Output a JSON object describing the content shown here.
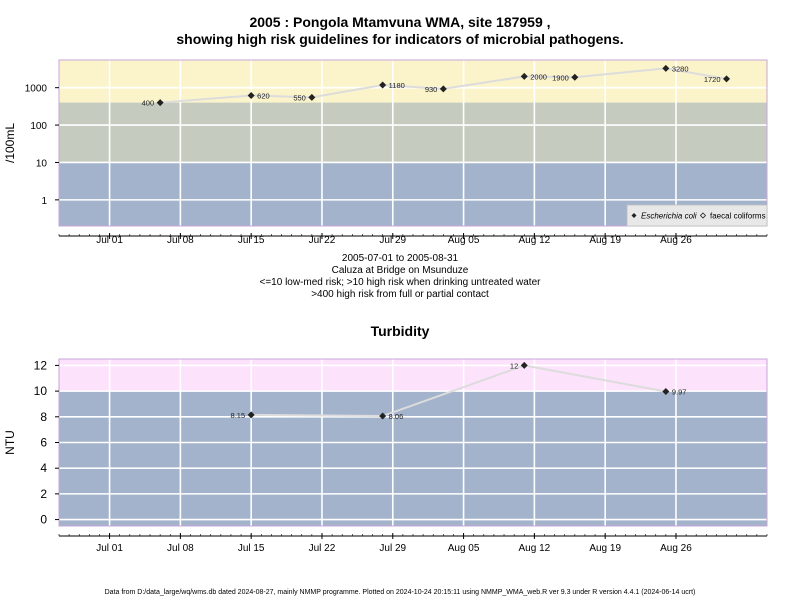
{
  "header": {
    "title_line1": "2005 : Pongola Mtamvuna WMA, site 187959 ,",
    "title_line2": "showing high risk guidelines for indicators of microbial pathogens.",
    "date_range": "2005-07-01 to 2005-08-31",
    "site_name": "Caluza at Bridge on Msunduze",
    "guideline_1": "<=10 low-med risk; >10 high risk when drinking untreated water",
    "guideline_2": ">400 high risk from full or partial contact",
    "footer": "Data from D:/data_large/wq/wms.db dated 2024-08-27, mainly NMMP programme. Plotted on 2024-10-24 20:15:11 using NMMP_WMA_web.R ver 9.3 under R version 4.4.1 (2024-06-14 ucrt)"
  },
  "colors": {
    "zone_low": "#a3b3cb",
    "zone_mid": "#c5ccbf",
    "zone_high": "#fbf4cb",
    "zone_turb_high": "#fde2fb",
    "line": "#dcdcdc",
    "point": "#222222",
    "grid": "#ffffff",
    "frame": "#c8a6d8"
  },
  "chart_data": [
    {
      "type": "line",
      "title": "",
      "ylabel": "/100mL",
      "xlabel": "",
      "y_scale": "log",
      "ylim": [
        0.2,
        5500
      ],
      "y_ticks": [
        {
          "v": 1,
          "label": "1"
        },
        {
          "v": 10,
          "label": "10"
        },
        {
          "v": 100,
          "label": "100"
        },
        {
          "v": 1000,
          "label": "1000"
        }
      ],
      "xlim": [
        "2005-06-26",
        "2005-09-04"
      ],
      "x_ticks": [
        "Jul 01",
        "Jul 08",
        "Jul 15",
        "Jul 22",
        "Jul 29",
        "Aug 05",
        "Aug 12",
        "Aug 19",
        "Aug 26"
      ],
      "x_tick_dates": [
        "2005-07-01",
        "2005-07-08",
        "2005-07-15",
        "2005-07-22",
        "2005-07-29",
        "2005-08-05",
        "2005-08-12",
        "2005-08-19",
        "2005-08-26"
      ],
      "zones": [
        {
          "from": 0.2,
          "to": 10,
          "color": "#a3b3cb"
        },
        {
          "from": 10,
          "to": 400,
          "color": "#c5ccbf"
        },
        {
          "from": 400,
          "to": 5500,
          "color": "#fbf4cb"
        }
      ],
      "series": [
        {
          "name": "Escherichia coli",
          "marker": "filled-diamond",
          "points": [
            {
              "x": "2005-07-06",
              "y": 400,
              "label": "400"
            },
            {
              "x": "2005-07-15",
              "y": 620,
              "label": "620"
            },
            {
              "x": "2005-07-21",
              "y": 550,
              "label": "550"
            },
            {
              "x": "2005-07-28",
              "y": 1180,
              "label": "1180"
            },
            {
              "x": "2005-08-03",
              "y": 930,
              "label": "930"
            },
            {
              "x": "2005-08-11",
              "y": 2000,
              "label": "2000"
            },
            {
              "x": "2005-08-16",
              "y": 1900,
              "label": "1900"
            },
            {
              "x": "2005-08-25",
              "y": 3280,
              "label": "3280"
            },
            {
              "x": "2005-08-31",
              "y": 1720,
              "label": "1720"
            }
          ]
        },
        {
          "name": "faecal coliforms",
          "marker": "open-diamond",
          "points": []
        }
      ],
      "legend": "bottom-right"
    },
    {
      "type": "line",
      "title": "Turbidity",
      "ylabel": "NTU",
      "xlabel": "",
      "y_scale": "linear",
      "ylim": [
        -0.5,
        12.5
      ],
      "y_ticks": [
        {
          "v": 0,
          "label": "0"
        },
        {
          "v": 2,
          "label": "2"
        },
        {
          "v": 4,
          "label": "4"
        },
        {
          "v": 6,
          "label": "6"
        },
        {
          "v": 8,
          "label": "8"
        },
        {
          "v": 10,
          "label": "10"
        },
        {
          "v": 12,
          "label": "12"
        }
      ],
      "xlim": [
        "2005-06-26",
        "2005-09-04"
      ],
      "x_ticks": [
        "Jul 01",
        "Jul 08",
        "Jul 15",
        "Jul 22",
        "Jul 29",
        "Aug 05",
        "Aug 12",
        "Aug 19",
        "Aug 26"
      ],
      "x_tick_dates": [
        "2005-07-01",
        "2005-07-08",
        "2005-07-15",
        "2005-07-22",
        "2005-07-29",
        "2005-08-05",
        "2005-08-12",
        "2005-08-19",
        "2005-08-26"
      ],
      "zones": [
        {
          "from": -0.5,
          "to": 10,
          "color": "#a3b3cb"
        },
        {
          "from": 10,
          "to": 12.5,
          "color": "#fde2fb"
        }
      ],
      "series": [
        {
          "name": "",
          "marker": "filled-diamond",
          "points": [
            {
              "x": "2005-07-15",
              "y": 8.15,
              "label": "8.15"
            },
            {
              "x": "2005-07-28",
              "y": 8.06,
              "label": "8.06"
            },
            {
              "x": "2005-08-11",
              "y": 12,
              "label": "12"
            },
            {
              "x": "2005-08-25",
              "y": 9.97,
              "label": "9.97"
            }
          ]
        }
      ],
      "legend": "none"
    }
  ]
}
